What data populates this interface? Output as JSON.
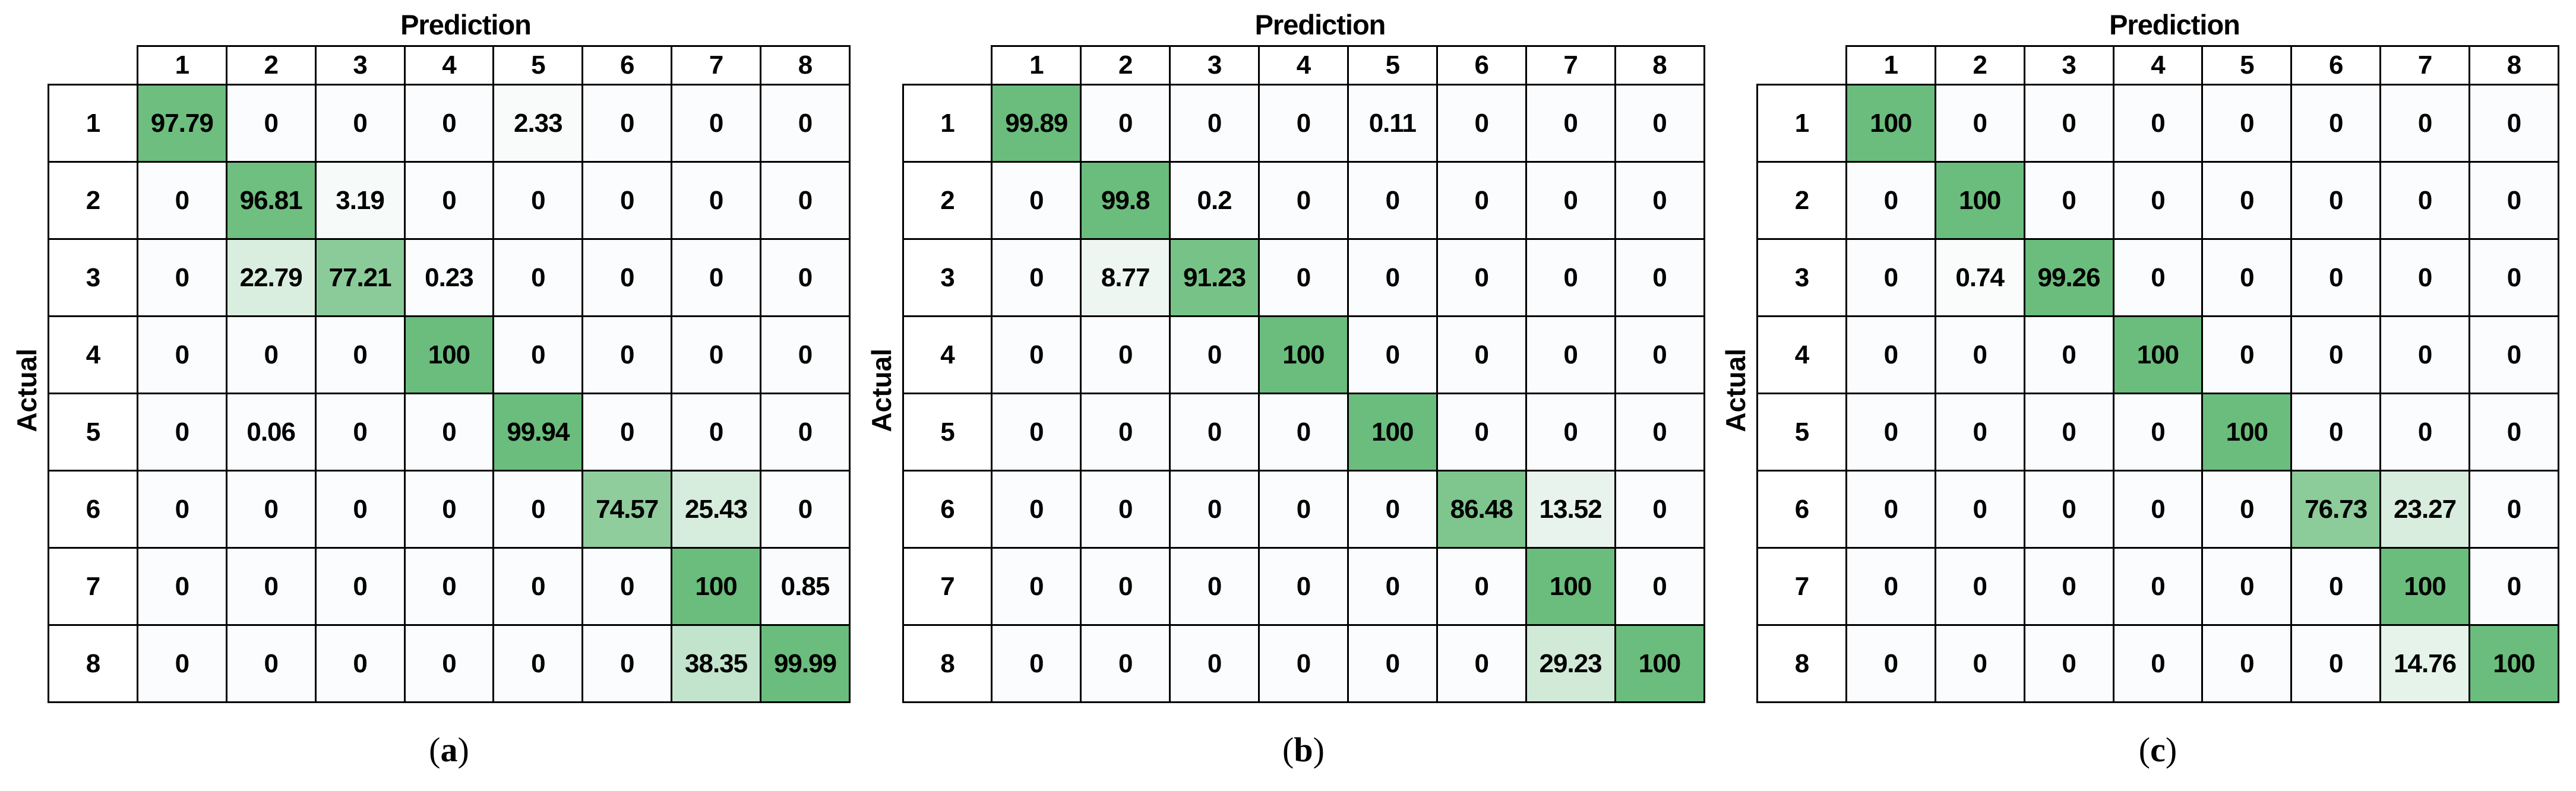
{
  "labels": {
    "prediction": "Prediction",
    "actual": "Actual",
    "caption_open": "(",
    "caption_close": ")"
  },
  "colors": {
    "diagonal_green": "#6ABD7C",
    "cell_min_tint": "#FBFCFD",
    "grid_border": "#000000",
    "header_bg": "#FFFFFF",
    "text": "#000000"
  },
  "chart_data": [
    {
      "id": "a",
      "type": "heatmap",
      "caption_letter": "a",
      "caption": "(a)",
      "x_axis_title": "Prediction",
      "y_axis_title": "Actual",
      "x_labels": [
        "1",
        "2",
        "3",
        "4",
        "5",
        "6",
        "7",
        "8"
      ],
      "y_labels": [
        "1",
        "2",
        "3",
        "4",
        "5",
        "6",
        "7",
        "8"
      ],
      "value_range": [
        0,
        100
      ],
      "colormap": {
        "low": "#FBFCFD",
        "high": "#6ABD7C"
      },
      "values": [
        [
          97.79,
          0,
          0,
          0,
          2.33,
          0,
          0,
          0
        ],
        [
          0,
          96.81,
          3.19,
          0,
          0,
          0,
          0,
          0
        ],
        [
          0,
          22.79,
          77.21,
          0.23,
          0,
          0,
          0,
          0
        ],
        [
          0,
          0,
          0,
          100,
          0,
          0,
          0,
          0
        ],
        [
          0,
          0.06,
          0,
          0,
          99.94,
          0,
          0,
          0
        ],
        [
          0,
          0,
          0,
          0,
          0,
          74.57,
          25.43,
          0
        ],
        [
          0,
          0,
          0,
          0,
          0,
          0,
          100,
          0.85
        ],
        [
          0,
          0,
          0,
          0,
          0,
          0,
          38.35,
          99.99
        ]
      ]
    },
    {
      "id": "b",
      "type": "heatmap",
      "caption_letter": "b",
      "caption": "(b)",
      "x_axis_title": "Prediction",
      "y_axis_title": "Actual",
      "x_labels": [
        "1",
        "2",
        "3",
        "4",
        "5",
        "6",
        "7",
        "8"
      ],
      "y_labels": [
        "1",
        "2",
        "3",
        "4",
        "5",
        "6",
        "7",
        "8"
      ],
      "value_range": [
        0,
        100
      ],
      "colormap": {
        "low": "#FBFCFD",
        "high": "#6ABD7C"
      },
      "values": [
        [
          99.89,
          0,
          0,
          0,
          0.11,
          0,
          0,
          0
        ],
        [
          0,
          99.8,
          0.2,
          0,
          0,
          0,
          0,
          0
        ],
        [
          0,
          8.77,
          91.23,
          0,
          0,
          0,
          0,
          0
        ],
        [
          0,
          0,
          0,
          100,
          0,
          0,
          0,
          0
        ],
        [
          0,
          0,
          0,
          0,
          100,
          0,
          0,
          0
        ],
        [
          0,
          0,
          0,
          0,
          0,
          86.48,
          13.52,
          0
        ],
        [
          0,
          0,
          0,
          0,
          0,
          0,
          100,
          0
        ],
        [
          0,
          0,
          0,
          0,
          0,
          0,
          29.23,
          100
        ]
      ]
    },
    {
      "id": "c",
      "type": "heatmap",
      "caption_letter": "c",
      "caption": "(c)",
      "x_axis_title": "Prediction",
      "y_axis_title": "Actual",
      "x_labels": [
        "1",
        "2",
        "3",
        "4",
        "5",
        "6",
        "7",
        "8"
      ],
      "y_labels": [
        "1",
        "2",
        "3",
        "4",
        "5",
        "6",
        "7",
        "8"
      ],
      "value_range": [
        0,
        100
      ],
      "colormap": {
        "low": "#FBFCFD",
        "high": "#6ABD7C"
      },
      "values": [
        [
          100,
          0,
          0,
          0,
          0,
          0,
          0,
          0
        ],
        [
          0,
          100,
          0,
          0,
          0,
          0,
          0,
          0
        ],
        [
          0,
          0.74,
          99.26,
          0,
          0,
          0,
          0,
          0
        ],
        [
          0,
          0,
          0,
          100,
          0,
          0,
          0,
          0
        ],
        [
          0,
          0,
          0,
          0,
          100,
          0,
          0,
          0
        ],
        [
          0,
          0,
          0,
          0,
          0,
          76.73,
          23.27,
          0
        ],
        [
          0,
          0,
          0,
          0,
          0,
          0,
          100,
          0
        ],
        [
          0,
          0,
          0,
          0,
          0,
          0,
          14.76,
          100
        ]
      ]
    }
  ]
}
